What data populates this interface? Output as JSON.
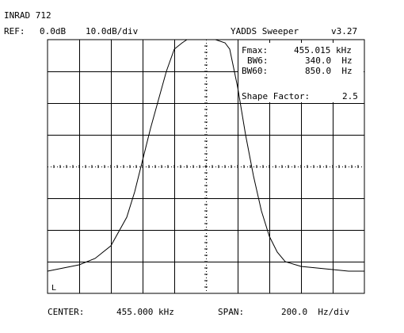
{
  "header": {
    "device": "INRAD 712",
    "ref_label": "REF:",
    "ref_value": "0.0dB",
    "scale": "10.0dB/div",
    "app_title": "YADDS Sweeper",
    "version": "v3.27"
  },
  "readouts": {
    "fmax_label": "Fmax:",
    "fmax_value": "455.015 kHz",
    "bw6_label": "BW6:",
    "bw6_value": "340.0  Hz",
    "bw60_label": "BW60:",
    "bw60_value": "850.0  Hz",
    "shape_label": "Shape Factor:",
    "shape_value": "2.5"
  },
  "footer": {
    "center_label": "CENTER:",
    "center_value": "455.000 kHz",
    "span_label": "SPAN:",
    "span_value": "200.0  Hz/div"
  },
  "marker_label": "L",
  "colors": {
    "background": "#ffffff",
    "trace": "#000000",
    "grid": "#000000"
  },
  "chart_data": {
    "type": "line",
    "x": [
      -5.0,
      -4.5,
      -4.0,
      -3.5,
      -3.0,
      -2.5,
      -2.25,
      -2.0,
      -1.75,
      -1.5,
      -1.25,
      -1.0,
      -0.75,
      -0.6,
      -0.3,
      0.0,
      0.3,
      0.6,
      0.75,
      1.0,
      1.25,
      1.5,
      1.75,
      2.0,
      2.25,
      2.5,
      3.0,
      3.5,
      4.0,
      4.5,
      5.0
    ],
    "y": [
      -73,
      -72,
      -71,
      -69,
      -65,
      -56,
      -48,
      -38,
      -28,
      -19,
      -10,
      -3,
      -1,
      0,
      0,
      0,
      0,
      -1,
      -3,
      -15,
      -30,
      -43,
      -54,
      -62,
      -67,
      -70,
      -71.5,
      -72,
      -72.5,
      -73,
      -73
    ],
    "x_divisions": 10,
    "y_divisions": 8,
    "ylim": [
      -80,
      0
    ],
    "grid": true
  }
}
